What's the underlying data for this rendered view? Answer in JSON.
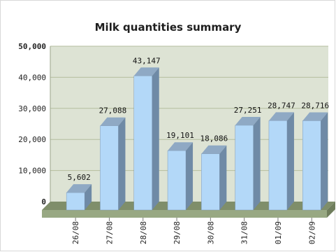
{
  "chart_data": {
    "type": "bar",
    "title": "Milk quantities summary",
    "categories": [
      "26/08",
      "27/08",
      "28/08",
      "29/08",
      "30/08",
      "31/08",
      "01/09",
      "02/09"
    ],
    "values": [
      5602,
      27088,
      43147,
      19101,
      18086,
      27251,
      28747,
      28716
    ],
    "value_labels": [
      "5,602",
      "27,088",
      "43,147",
      "19,101",
      "18,086",
      "27,251",
      "28,747",
      "28,716"
    ],
    "y_ticks": [
      "0",
      "10,000",
      "20,000",
      "30,000",
      "40,000",
      "50,000"
    ],
    "ylim": [
      0,
      50000
    ],
    "grid": true,
    "style": "3d-column",
    "colors": {
      "bar_front": "#b3d8f8",
      "bar_top": "#8fa9c4",
      "bar_side": "#6f8aa6",
      "plot_bg": "#dde3d4",
      "floor": "#98a883",
      "grid": "#b4be9e"
    }
  }
}
